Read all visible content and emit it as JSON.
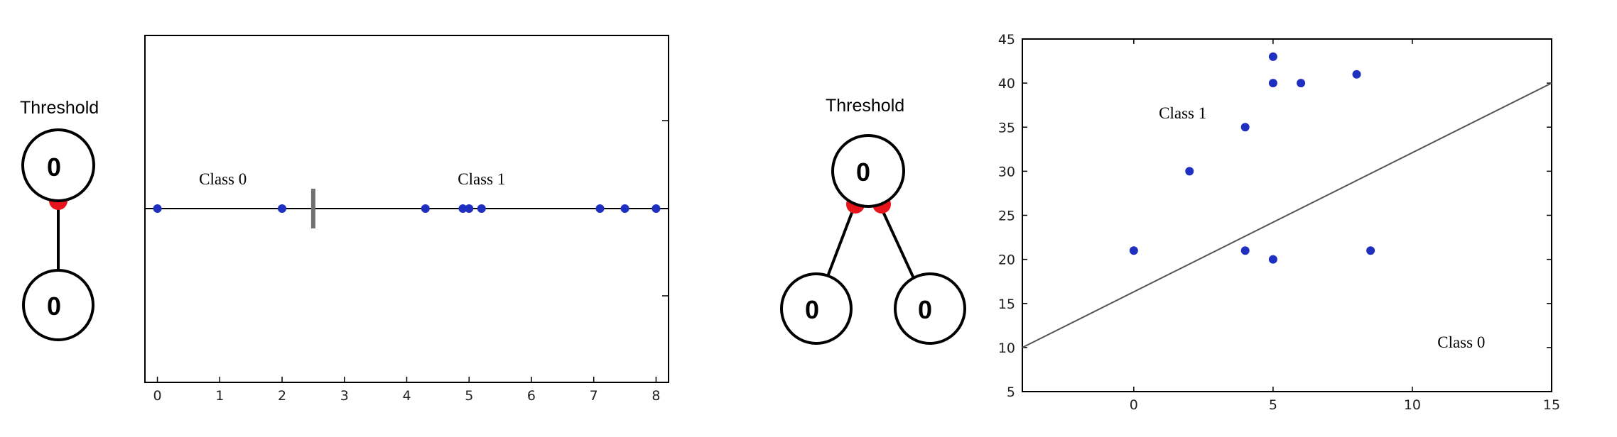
{
  "colors": {
    "point": "#1f2fbf",
    "connector": "#e8141c",
    "axis": "#000000",
    "boundary": "#707070"
  },
  "left_network": {
    "threshold_label": "Threshold",
    "top_node": "0",
    "bottom_node": "0"
  },
  "right_network": {
    "threshold_label": "Threshold",
    "top_node": "0",
    "left_node": "0",
    "right_node": "0"
  },
  "chart_data": [
    {
      "type": "scatter",
      "title": "",
      "xlabel": "",
      "ylabel": "",
      "xlim": [
        -0.2,
        8.2
      ],
      "xticks": [
        0,
        1,
        2,
        3,
        4,
        5,
        6,
        7,
        8
      ],
      "x": [
        0,
        2,
        4.3,
        4.9,
        5.0,
        5.2,
        7.1,
        7.5,
        8.0
      ],
      "y": [
        0,
        0,
        0,
        0,
        0,
        0,
        0,
        0,
        0
      ],
      "decision_threshold": 2.5,
      "annotations": [
        {
          "text": "Class 0",
          "x": 1.05
        },
        {
          "text": "Class 1",
          "x": 5.2
        }
      ],
      "grid": false
    },
    {
      "type": "scatter",
      "title": "",
      "xlabel": "",
      "ylabel": "",
      "xlim": [
        -4,
        15
      ],
      "ylim": [
        5,
        45
      ],
      "xticks": [
        0,
        5,
        10,
        15
      ],
      "yticks": [
        5,
        10,
        15,
        20,
        25,
        30,
        35,
        40,
        45
      ],
      "points": [
        {
          "x": 0,
          "y": 21
        },
        {
          "x": 2,
          "y": 30
        },
        {
          "x": 4,
          "y": 35
        },
        {
          "x": 4,
          "y": 21
        },
        {
          "x": 5,
          "y": 43
        },
        {
          "x": 5,
          "y": 40
        },
        {
          "x": 5,
          "y": 20
        },
        {
          "x": 6,
          "y": 40
        },
        {
          "x": 8,
          "y": 41
        },
        {
          "x": 8.5,
          "y": 21
        }
      ],
      "decision_line": [
        {
          "x": -4,
          "y": 10
        },
        {
          "x": 15,
          "y": 40
        }
      ],
      "annotations": [
        {
          "text": "Class 1",
          "x": 0.9,
          "y": 36
        },
        {
          "text": "Class 0",
          "x": 10.9,
          "y": 10
        }
      ],
      "grid": false
    }
  ]
}
